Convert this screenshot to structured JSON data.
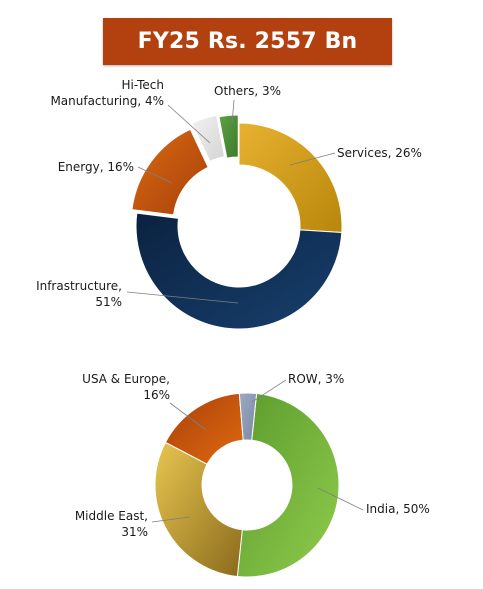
{
  "title": "FY25 Rs. 2557 Bn",
  "chart_data": [
    {
      "type": "pie",
      "variant": "donut",
      "segments": [
        {
          "label": "Services",
          "value": 26,
          "color": "#D79B12",
          "label_lines": [
            "Services, 26%"
          ]
        },
        {
          "label": "Infrastructure",
          "value": 51,
          "color": "#0F2F57",
          "label_lines": [
            "Infrastructure,",
            "51%"
          ]
        },
        {
          "label": "Energy",
          "value": 16,
          "color": "#C8520E",
          "label_lines": [
            "Energy, 16%"
          ]
        },
        {
          "label": "Hi-Tech Manufacturing",
          "value": 4,
          "color": "#E6E6E6",
          "label_lines": [
            "Hi-Tech",
            "Manufacturing, 4%"
          ]
        },
        {
          "label": "Others",
          "value": 3,
          "color": "#4E8D3A",
          "label_lines": [
            "Others, 3%"
          ]
        }
      ]
    },
    {
      "type": "pie",
      "variant": "donut",
      "segments": [
        {
          "label": "India",
          "value": 50,
          "color": "#6FB23C",
          "label_lines": [
            "India, 50%"
          ]
        },
        {
          "label": "Middle East",
          "value": 31,
          "color": "#D2AF3A",
          "label_lines": [
            "Middle East,",
            "31%"
          ]
        },
        {
          "label": "USA & Europe",
          "value": 16,
          "color": "#C8520E",
          "label_lines": [
            "USA & Europe,",
            "16%"
          ]
        },
        {
          "label": "ROW",
          "value": 3,
          "color": "#8C9AB5",
          "label_lines": [
            "ROW, 3%"
          ]
        }
      ]
    }
  ]
}
